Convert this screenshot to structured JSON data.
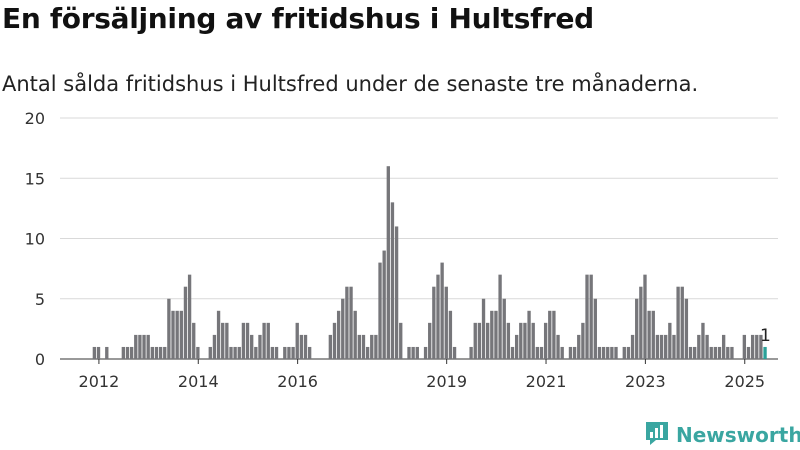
{
  "title": "En försäljning av fritidshus i Hultsfred",
  "subtitle": "Antal sålda fritidshus i Hultsfred under de senaste tre månaderna.",
  "brand": "Newsworthy",
  "colors": {
    "bar": "#76767a",
    "highlight": "#2aa198",
    "grid": "#d9d9d9",
    "brand": "#3aa6a1"
  },
  "chart_data": {
    "type": "bar",
    "ylim": [
      0,
      20
    ],
    "yticks": [
      0,
      5,
      10,
      15,
      20
    ],
    "x_tick_labels": [
      "2012",
      "2014",
      "2016",
      "2019",
      "2021",
      "2023",
      "2025"
    ],
    "x_tick_months": [
      2012.0,
      2014.0,
      2016.0,
      2019.0,
      2021.0,
      2023.0,
      2025.0
    ],
    "start_month": "2011-07",
    "highlight_last": true,
    "last_value_label": "1",
    "values": [
      0,
      0,
      0,
      0,
      0,
      1,
      1,
      0,
      1,
      0,
      0,
      0,
      1,
      1,
      1,
      2,
      2,
      2,
      2,
      1,
      1,
      1,
      1,
      5,
      4,
      4,
      4,
      6,
      7,
      3,
      1,
      0,
      0,
      1,
      2,
      4,
      3,
      3,
      1,
      1,
      1,
      3,
      3,
      2,
      1,
      2,
      3,
      3,
      1,
      1,
      0,
      1,
      1,
      1,
      3,
      2,
      2,
      1,
      0,
      0,
      0,
      0,
      2,
      3,
      4,
      5,
      6,
      6,
      4,
      2,
      2,
      1,
      2,
      2,
      8,
      9,
      16,
      13,
      11,
      3,
      0,
      1,
      1,
      1,
      0,
      1,
      3,
      6,
      7,
      8,
      6,
      4,
      1,
      0,
      0,
      0,
      1,
      3,
      3,
      5,
      3,
      4,
      4,
      7,
      5,
      3,
      1,
      2,
      3,
      3,
      4,
      3,
      1,
      1,
      3,
      4,
      4,
      2,
      1,
      0,
      1,
      1,
      2,
      3,
      7,
      7,
      5,
      1,
      1,
      1,
      1,
      1,
      0,
      1,
      1,
      2,
      5,
      6,
      7,
      4,
      4,
      2,
      2,
      2,
      3,
      2,
      6,
      6,
      5,
      1,
      1,
      2,
      3,
      2,
      1,
      1,
      1,
      2,
      1,
      1,
      0,
      0,
      2,
      1,
      2,
      2,
      2,
      1
    ]
  }
}
